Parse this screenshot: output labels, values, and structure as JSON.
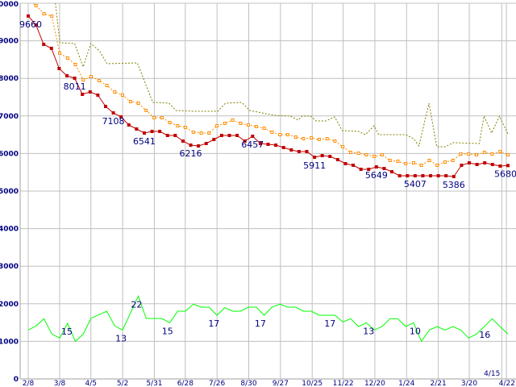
{
  "chart_data": {
    "type": "line",
    "title": "",
    "xlabel": "",
    "ylabel": "",
    "ylim": [
      0,
      10000
    ],
    "xlim_weeks": [
      0,
      62
    ],
    "grid": true,
    "yticks": [
      0,
      1000,
      2000,
      3000,
      4000,
      5000,
      6000,
      7000,
      8000,
      9000,
      10000
    ],
    "xticks": [
      {
        "label": "2/8",
        "week": 0
      },
      {
        "label": "3/8",
        "week": 4.06
      },
      {
        "label": "4/5",
        "week": 8.1
      },
      {
        "label": "5/2",
        "week": 12.2
      },
      {
        "label": "5/31",
        "week": 16.3
      },
      {
        "label": "6/28",
        "week": 20.3
      },
      {
        "label": "7/26",
        "week": 24.4
      },
      {
        "label": "8/30",
        "week": 28.5
      },
      {
        "label": "9/27",
        "week": 32.6
      },
      {
        "label": "10/25",
        "week": 36.7
      },
      {
        "label": "11/22",
        "week": 40.7
      },
      {
        "label": "12/20",
        "week": 44.8
      },
      {
        "label": "1/24",
        "week": 48.9
      },
      {
        "label": "2/21",
        "week": 53.0
      },
      {
        "label": "3/20",
        "week": 57.0
      },
      {
        "label": "4/15",
        "week": 61.2
      },
      {
        "label": "4/22",
        "week": 61.8
      }
    ],
    "series": [
      {
        "name": "price",
        "color": "#c00000",
        "style": "solid-square",
        "values": [
          9660,
          9421,
          8906,
          8799,
          8262,
          8069,
          8004,
          7575,
          7640,
          7554,
          7253,
          7081,
          6974,
          6760,
          6652,
          6545,
          6588,
          6588,
          6481,
          6481,
          6331,
          6223,
          6202,
          6266,
          6374,
          6481,
          6481,
          6481,
          6331,
          6459,
          6266,
          6245,
          6223,
          6159,
          6095,
          6052,
          6052,
          5902,
          5944,
          5923,
          5837,
          5730,
          5687,
          5580,
          5580,
          5644,
          5601,
          5515,
          5408,
          5408,
          5408,
          5408,
          5408,
          5408,
          5408,
          5386,
          5687,
          5751,
          5708,
          5751,
          5708,
          5666,
          5680
        ]
      },
      {
        "name": "average",
        "color": "#ff8c00",
        "style": "dotted-hollow-square",
        "values": [
          10086,
          9936,
          9721,
          9657,
          8670,
          8541,
          8369,
          7961,
          8047,
          7940,
          7811,
          7640,
          7554,
          7382,
          7339,
          7146,
          6953,
          6953,
          6824,
          6738,
          6695,
          6567,
          6545,
          6545,
          6738,
          6803,
          6889,
          6803,
          6760,
          6717,
          6674,
          6567,
          6502,
          6502,
          6438,
          6395,
          6416,
          6374,
          6395,
          6331,
          6180,
          6030,
          6009,
          5966,
          5923,
          5966,
          5816,
          5794,
          5730,
          5751,
          5687,
          5816,
          5687,
          5773,
          5816,
          5987,
          5987,
          5966,
          6030,
          5987,
          6052,
          5966
        ]
      },
      {
        "name": "high",
        "color": "#808000",
        "style": "dotted",
        "points": [
          [
            3.0,
            10945
          ],
          [
            4.1,
            8949
          ],
          [
            6.0,
            8927
          ],
          [
            7.1,
            8305
          ],
          [
            8.1,
            8927
          ],
          [
            9.2,
            8734
          ],
          [
            10.2,
            8391
          ],
          [
            14.1,
            8412
          ],
          [
            16.1,
            7361
          ],
          [
            18.2,
            7339
          ],
          [
            19.1,
            7146
          ],
          [
            21.4,
            7125
          ],
          [
            24.5,
            7125
          ],
          [
            25.5,
            7339
          ],
          [
            27.6,
            7361
          ],
          [
            28.6,
            7146
          ],
          [
            31.8,
            7017
          ],
          [
            33.9,
            6996
          ],
          [
            34.9,
            6889
          ],
          [
            35.4,
            6996
          ],
          [
            36.5,
            6996
          ],
          [
            37.2,
            6867
          ],
          [
            38.5,
            6867
          ],
          [
            39.6,
            6974
          ],
          [
            40.6,
            6610
          ],
          [
            42.7,
            6588
          ],
          [
            43.6,
            6502
          ],
          [
            44.7,
            6738
          ],
          [
            45.3,
            6502
          ],
          [
            48.8,
            6502
          ],
          [
            49.8,
            6395
          ],
          [
            50.5,
            6202
          ],
          [
            51.8,
            7339
          ],
          [
            52.8,
            6180
          ],
          [
            53.9,
            6180
          ],
          [
            54.9,
            6288
          ],
          [
            58.3,
            6266
          ],
          [
            58.9,
            6996
          ],
          [
            59.9,
            6545
          ],
          [
            60.9,
            6996
          ],
          [
            62.0,
            6524
          ]
        ]
      },
      {
        "name": "count",
        "color": "#00ff00",
        "style": "solid",
        "values": [
          1302,
          1409,
          1602,
          1195,
          1087,
          1481,
          1001,
          1195,
          1617,
          1710,
          1803,
          1409,
          1302,
          1753,
          2204,
          1610,
          1610,
          1610,
          1495,
          1803,
          1803,
          1989,
          1910,
          1910,
          1695,
          1896,
          1803,
          1803,
          1910,
          1910,
          1695,
          1910,
          1989,
          1910,
          1910,
          1803,
          1803,
          1695,
          1695,
          1695,
          1517,
          1602,
          1395,
          1495,
          1302,
          1395,
          1602,
          1602,
          1395,
          1495,
          1001,
          1302,
          1395,
          1302,
          1395,
          1302,
          1087,
          1195,
          1395,
          1602,
          1395,
          1195
        ]
      }
    ],
    "annotations": [
      {
        "series": "price",
        "week": 0,
        "text": "9660"
      },
      {
        "series": "price",
        "week": 6,
        "text": "8011"
      },
      {
        "series": "price",
        "week": 11,
        "text": "7108"
      },
      {
        "series": "price",
        "week": 15,
        "text": "6541"
      },
      {
        "series": "price",
        "week": 21,
        "text": "6216"
      },
      {
        "series": "price",
        "week": 29,
        "text": "6457"
      },
      {
        "series": "price",
        "week": 37,
        "text": "5911"
      },
      {
        "series": "price",
        "week": 45,
        "text": "5649"
      },
      {
        "series": "price",
        "week": 50,
        "text": "5407"
      },
      {
        "series": "price",
        "week": 55,
        "text": "5386"
      },
      {
        "series": "price",
        "week": 62,
        "text": "5680"
      },
      {
        "series": "count",
        "week": 5,
        "text": "15"
      },
      {
        "series": "count",
        "week": 12,
        "text": "13"
      },
      {
        "series": "count",
        "week": 14,
        "text": "22"
      },
      {
        "series": "count",
        "week": 18,
        "text": "15"
      },
      {
        "series": "count",
        "week": 24,
        "text": "17"
      },
      {
        "series": "count",
        "week": 30,
        "text": "17"
      },
      {
        "series": "count",
        "week": 39,
        "text": "17"
      },
      {
        "series": "count",
        "week": 44,
        "text": "13"
      },
      {
        "series": "count",
        "week": 50,
        "text": "10"
      },
      {
        "series": "count",
        "week": 59,
        "text": "16"
      }
    ]
  }
}
